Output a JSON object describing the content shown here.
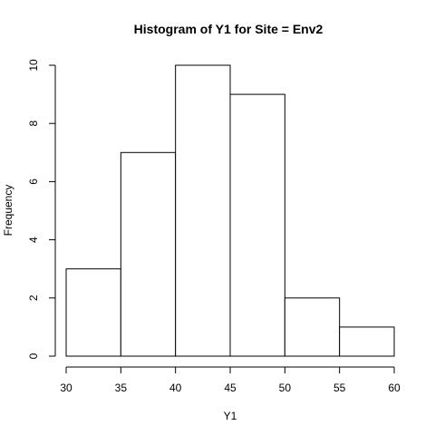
{
  "chart_data": {
    "type": "bar",
    "title": "Histogram of Y1 for Site = Env2",
    "xlabel": "Y1",
    "ylabel": "Frequency",
    "bins": [
      {
        "from": 30,
        "to": 35,
        "value": 3
      },
      {
        "from": 35,
        "to": 40,
        "value": 7
      },
      {
        "from": 40,
        "to": 45,
        "value": 10
      },
      {
        "from": 45,
        "to": 50,
        "value": 9
      },
      {
        "from": 50,
        "to": 55,
        "value": 2
      },
      {
        "from": 55,
        "to": 60,
        "value": 1
      }
    ],
    "xlim": [
      30,
      60
    ],
    "ylim": [
      0,
      10
    ],
    "xticks": [
      "30",
      "35",
      "40",
      "45",
      "50",
      "55",
      "60"
    ],
    "yticks": [
      "0",
      "2",
      "4",
      "6",
      "8",
      "10"
    ],
    "grid": false,
    "bar_fill": "#ffffff",
    "bar_stroke": "#000000"
  }
}
